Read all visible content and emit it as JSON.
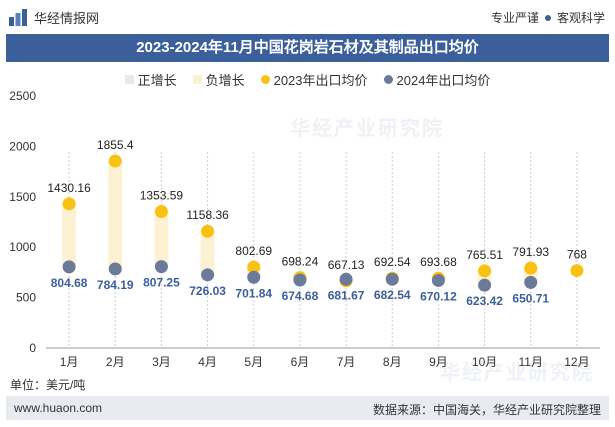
{
  "header": {
    "brand": "华经情报网",
    "slogan_left": "专业严谨",
    "slogan_right": "客观科学"
  },
  "title": "2023-2024年11月中国花岗岩石材及其制品出口均价",
  "legend": [
    {
      "label": "正增长",
      "color": "#e5e9f2",
      "shape": "square"
    },
    {
      "label": "负增长",
      "color": "#fdf1d3",
      "shape": "square"
    },
    {
      "label": "2023年出口均价",
      "color": "#f9c112",
      "shape": "circle"
    },
    {
      "label": "2024年出口均价",
      "color": "#6b7a99",
      "shape": "circle"
    }
  ],
  "unit_label": "单位：美元/吨",
  "footer": {
    "site": "www.huaon.com",
    "source": "数据来源：中国海关，华经产业研究院整理"
  },
  "watermark": "华经产业研究院",
  "chart_data": {
    "type": "scatter",
    "title": "2023-2024年11月中国花岗岩石材及其制品出口均价",
    "categories": [
      "1月",
      "2月",
      "3月",
      "4月",
      "5月",
      "6月",
      "7月",
      "8月",
      "9月",
      "10月",
      "11月",
      "12月"
    ],
    "series": [
      {
        "name": "2023年出口均价",
        "values": [
          1430.16,
          1855.4,
          1353.59,
          1158.36,
          802.69,
          698.24,
          667.13,
          692.54,
          693.68,
          765.51,
          791.93,
          768
        ],
        "color": "#f9c112"
      },
      {
        "name": "2024年出口均价",
        "values": [
          804.68,
          784.19,
          807.25,
          726.03,
          701.84,
          674.68,
          681.67,
          682.54,
          670.12,
          623.42,
          650.71,
          null
        ],
        "color": "#6b7a99"
      }
    ],
    "ylim": [
      0,
      2500
    ],
    "yticks": [
      0,
      500,
      1000,
      1500,
      2000,
      2500
    ],
    "ylabel": "美元/吨",
    "xlabel": "",
    "band_colors": {
      "positive": "#e5e9f2",
      "negative": "#fdf1d3"
    }
  }
}
